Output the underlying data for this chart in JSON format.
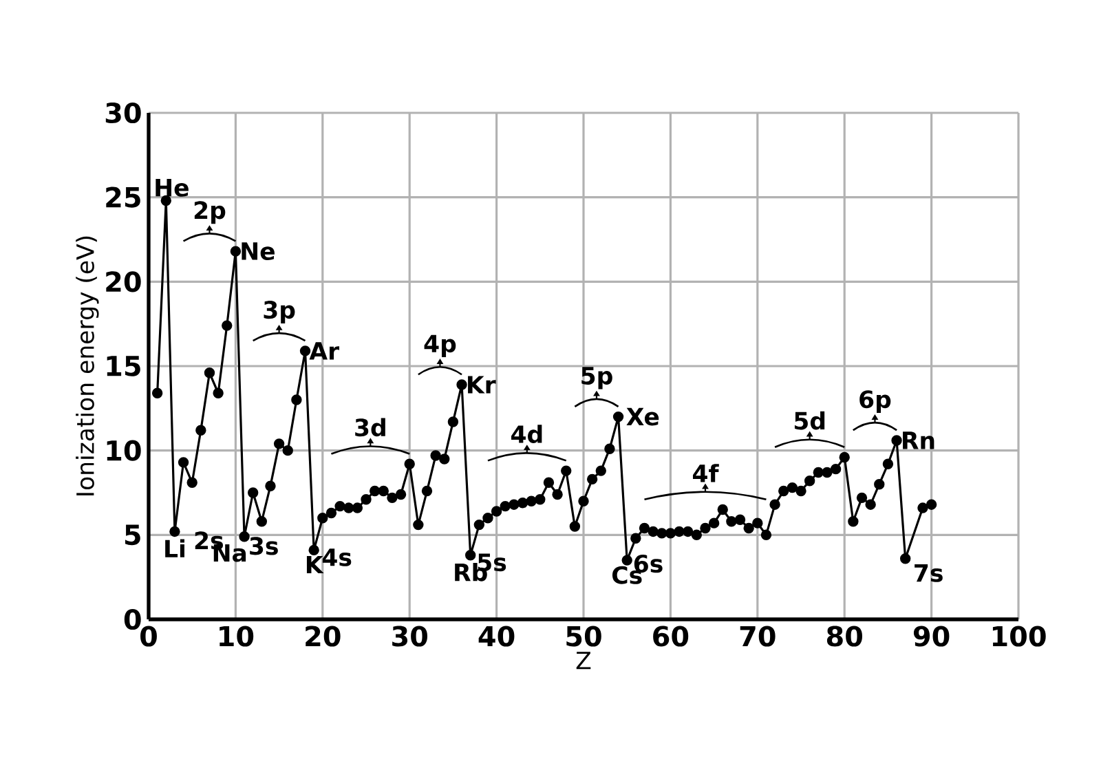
{
  "chart_data": {
    "type": "line",
    "xlabel": "Z",
    "ylabel": "Ionization energy (eV)",
    "x": [
      1,
      2,
      3,
      4,
      5,
      6,
      7,
      8,
      9,
      10,
      11,
      12,
      13,
      14,
      15,
      16,
      17,
      18,
      19,
      20,
      21,
      22,
      23,
      24,
      25,
      26,
      27,
      28,
      29,
      30,
      31,
      32,
      33,
      34,
      35,
      36,
      37,
      38,
      39,
      40,
      41,
      42,
      43,
      44,
      45,
      46,
      47,
      48,
      49,
      50,
      51,
      52,
      53,
      54,
      55,
      56,
      57,
      58,
      59,
      60,
      61,
      62,
      63,
      64,
      65,
      66,
      67,
      68,
      69,
      70,
      71,
      72,
      73,
      74,
      75,
      76,
      77,
      78,
      79,
      80,
      81,
      82,
      83,
      84,
      85,
      86,
      87,
      89,
      90
    ],
    "values": [
      13.4,
      24.8,
      5.2,
      9.3,
      8.1,
      11.2,
      14.6,
      13.4,
      17.4,
      21.8,
      4.9,
      7.5,
      5.8,
      7.9,
      10.4,
      10.0,
      13.0,
      15.9,
      4.1,
      6.0,
      6.3,
      6.7,
      6.6,
      6.6,
      7.1,
      7.6,
      7.6,
      7.2,
      7.4,
      9.2,
      5.6,
      7.6,
      9.7,
      9.5,
      11.7,
      13.9,
      3.8,
      5.6,
      6.0,
      6.4,
      6.7,
      6.8,
      6.9,
      7.0,
      7.1,
      8.1,
      7.4,
      8.8,
      5.5,
      7.0,
      8.3,
      8.8,
      10.1,
      12.0,
      3.5,
      4.8,
      5.4,
      5.2,
      5.1,
      5.1,
      5.2,
      5.2,
      5.0,
      5.4,
      5.7,
      6.5,
      5.8,
      5.9,
      5.4,
      5.7,
      5.0,
      6.8,
      7.6,
      7.8,
      7.6,
      8.2,
      8.7,
      8.7,
      8.9,
      9.6,
      5.8,
      7.2,
      6.8,
      8.0,
      9.2,
      10.6,
      3.6,
      6.6,
      6.8
    ],
    "color": "#000000",
    "marker": "circle",
    "line_style": "solid",
    "grid": true,
    "xlim": [
      0,
      100
    ],
    "ylim": [
      0,
      30
    ],
    "xticks": [
      0,
      10,
      20,
      30,
      40,
      50,
      60,
      70,
      80,
      90,
      100
    ],
    "yticks": [
      0,
      5,
      10,
      15,
      20,
      25,
      30
    ],
    "annotations": [
      {
        "text": "He",
        "x": 2,
        "y": 24.8
      },
      {
        "text": "Ne",
        "x": 10,
        "y": 21.8
      },
      {
        "text": "Ar",
        "x": 18,
        "y": 15.9
      },
      {
        "text": "Kr",
        "x": 36,
        "y": 13.9
      },
      {
        "text": "Xe",
        "x": 54,
        "y": 12.0
      },
      {
        "text": "Rn",
        "x": 86,
        "y": 10.6
      },
      {
        "text": "Li",
        "x": 3,
        "y": 5.2
      },
      {
        "text": "Na",
        "x": 11,
        "y": 4.9
      },
      {
        "text": "K",
        "x": 19,
        "y": 4.1
      },
      {
        "text": "Rb",
        "x": 37,
        "y": 3.8
      },
      {
        "text": "Cs",
        "x": 55,
        "y": 3.5
      },
      {
        "text": "2s",
        "x": 3,
        "y": 5.2
      },
      {
        "text": "3s",
        "x": 11,
        "y": 4.9
      },
      {
        "text": "4s",
        "x": 19,
        "y": 4.1
      },
      {
        "text": "5s",
        "x": 37,
        "y": 3.8
      },
      {
        "text": "6s",
        "x": 55,
        "y": 3.5
      },
      {
        "text": "7s",
        "x": 87,
        "y": 3.6
      },
      "2p",
      "3p",
      "3d",
      "4p",
      "4d",
      "5p",
      "4f",
      "5d",
      "6p"
    ]
  }
}
